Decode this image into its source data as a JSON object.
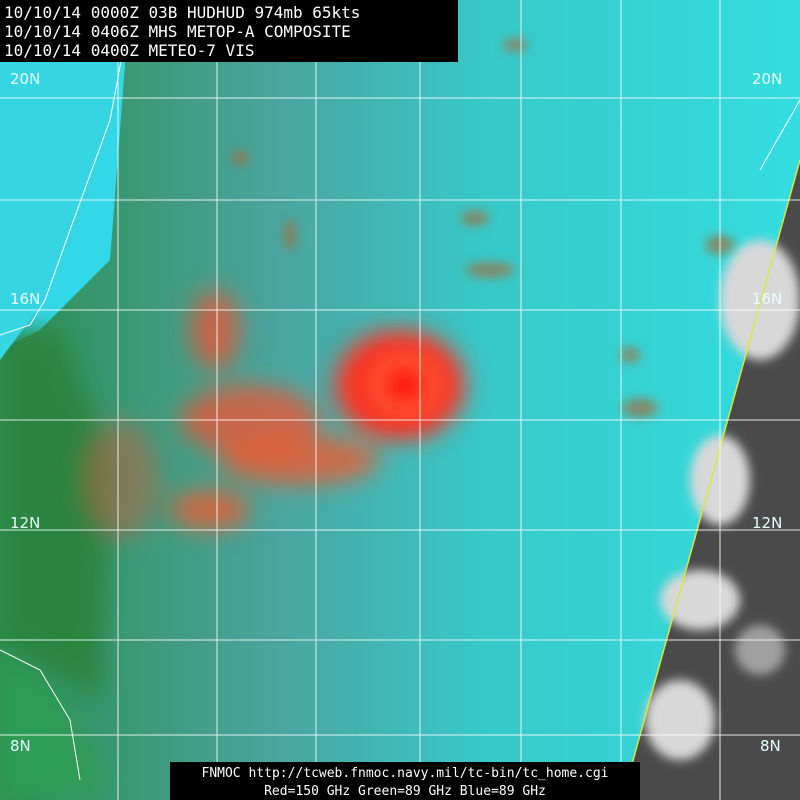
{
  "header": {
    "lines": [
      "10/10/14 0000Z  03B HUDHUD 974mb 65kts",
      "10/10/14 0406Z  MHS METOP-A COMPOSITE",
      "10/10/14 0400Z  METEO-7 VIS"
    ]
  },
  "lat_labels": [
    "20N",
    "16N",
    "12N",
    "8N"
  ],
  "footer": {
    "lines": [
      "FNMOC  http://tcweb.fnmoc.navy.mil/tc-bin/tc_home.cgi",
      "Red=150 GHz  Green=89 GHz Blue=89 GHz"
    ]
  }
}
